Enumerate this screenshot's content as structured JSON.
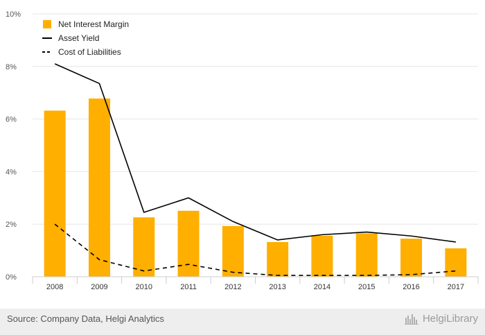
{
  "chart_data": {
    "type": "bar",
    "categories": [
      "2008",
      "2009",
      "2010",
      "2011",
      "2012",
      "2013",
      "2014",
      "2015",
      "2016",
      "2017"
    ],
    "series": [
      {
        "name": "Net Interest Margin",
        "type": "bar",
        "style": "solid",
        "color": "#FFAF00",
        "values": [
          6.32,
          6.78,
          2.26,
          2.51,
          1.93,
          1.32,
          1.56,
          1.65,
          1.45,
          1.08
        ]
      },
      {
        "name": "Asset Yield",
        "type": "line",
        "style": "solid",
        "color": "#000000",
        "values": [
          8.1,
          7.35,
          2.45,
          3.0,
          2.1,
          1.4,
          1.6,
          1.7,
          1.55,
          1.32
        ]
      },
      {
        "name": "Cost of Liabilities",
        "type": "line",
        "style": "dashed",
        "color": "#000000",
        "values": [
          2.0,
          0.65,
          0.22,
          0.47,
          0.17,
          0.05,
          0.05,
          0.05,
          0.08,
          0.22
        ]
      }
    ],
    "ylim": [
      0,
      10
    ],
    "yticks": [
      0,
      2,
      4,
      6,
      8,
      10
    ],
    "ytick_labels": [
      "0%",
      "2%",
      "4%",
      "6%",
      "8%",
      "10%"
    ],
    "grid": "horizontal",
    "legend_position": "top-left",
    "title": "",
    "xlabel": "",
    "ylabel": ""
  },
  "footer": {
    "source": "Source: Company Data, Helgi Analytics",
    "logo_text": "HelgiLibrary"
  },
  "colors": {
    "bar": "#FFAF00",
    "grid": "#e6e6e6",
    "footer_bg": "#eeeeee"
  }
}
